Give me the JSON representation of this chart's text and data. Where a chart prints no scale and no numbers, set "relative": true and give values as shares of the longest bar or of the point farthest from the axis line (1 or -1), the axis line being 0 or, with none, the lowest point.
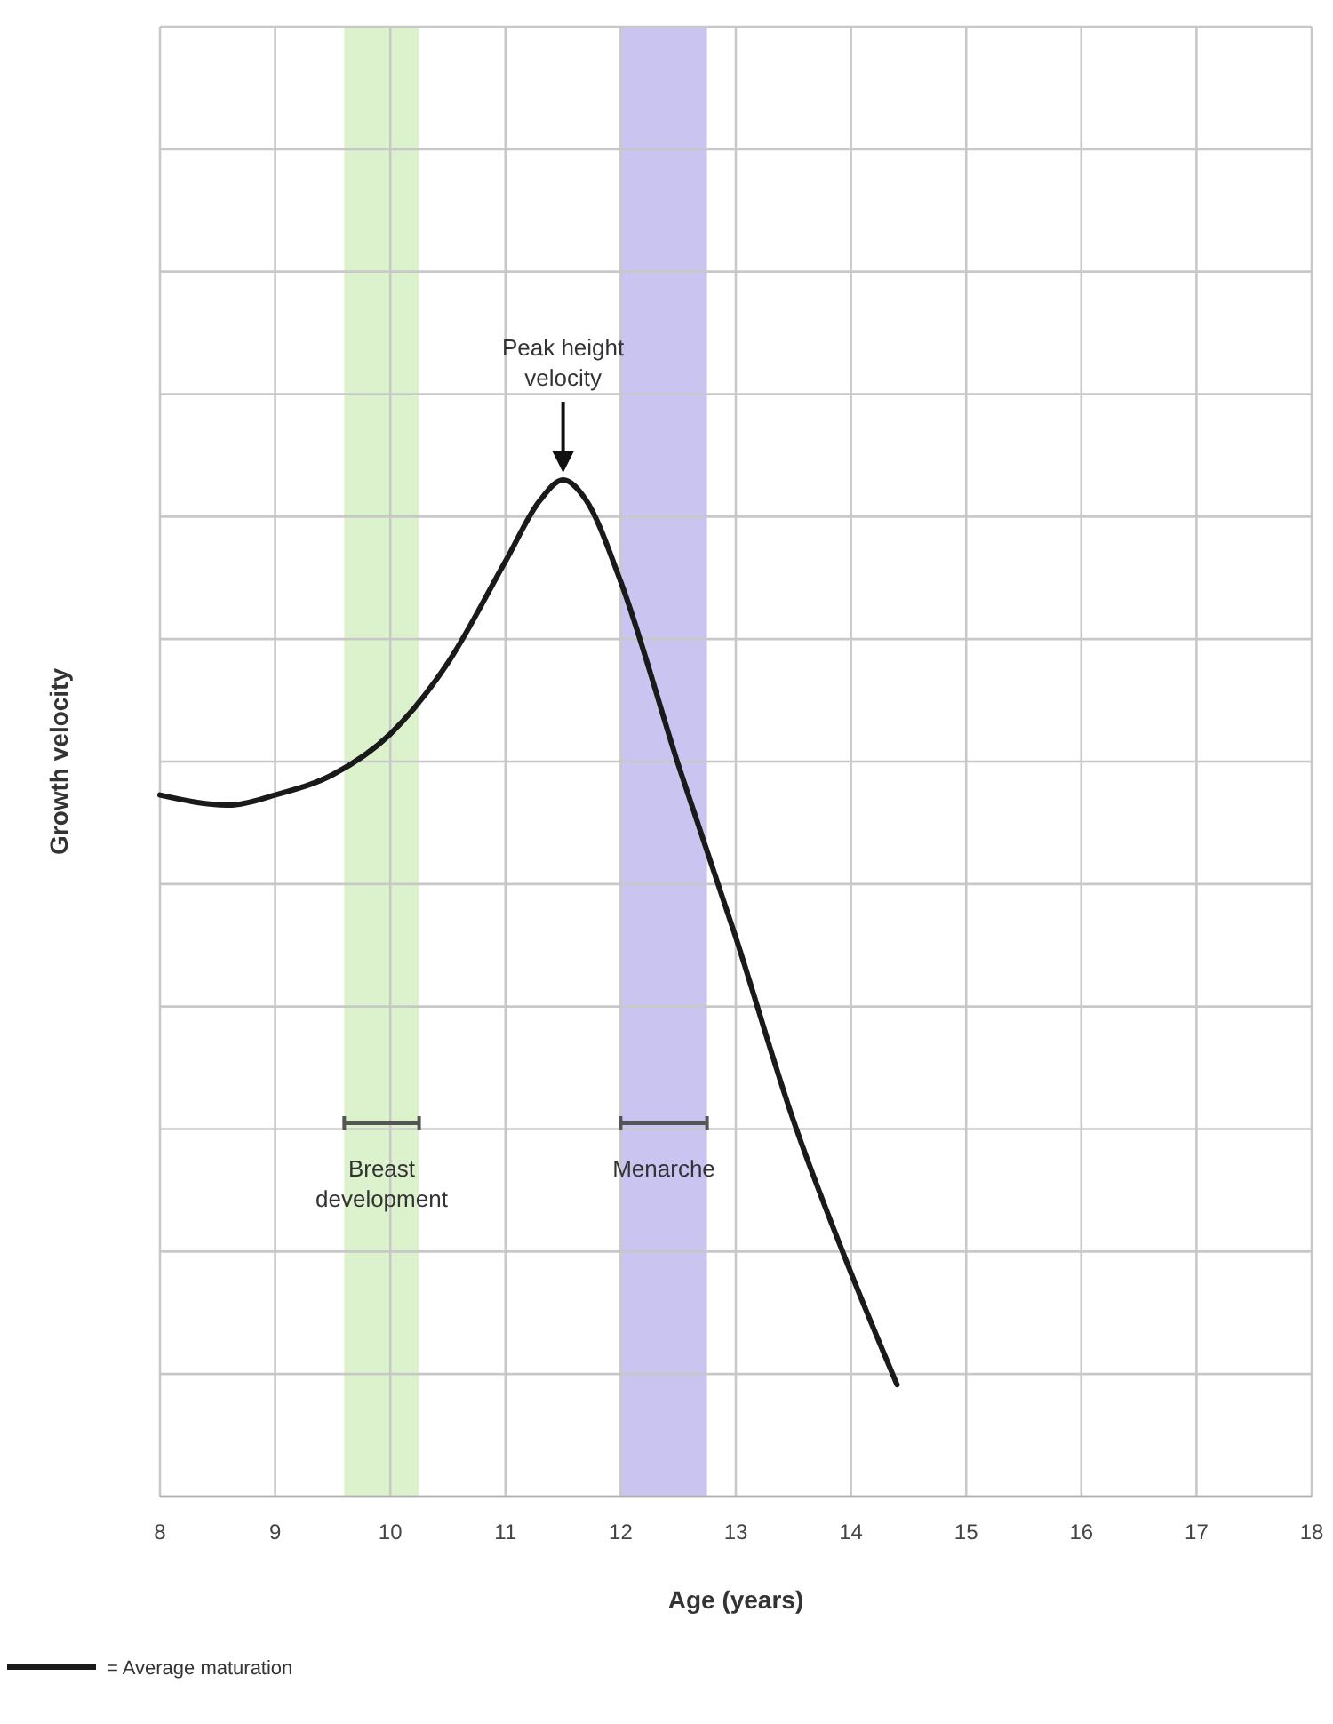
{
  "chart_data": {
    "type": "line",
    "xlabel": "Age (years)",
    "ylabel": "Growth velocity",
    "relative": true,
    "x": [
      8.0,
      8.6,
      9.0,
      9.5,
      10.0,
      10.5,
      11.0,
      11.3,
      11.5,
      11.7,
      12.0,
      12.5,
      13.0,
      13.5,
      14.0,
      14.4
    ],
    "series": [
      {
        "name": "= Average maturation",
        "color": "#1a1a1a",
        "values": [
          0.69,
          0.68,
          0.69,
          0.71,
          0.75,
          0.82,
          0.92,
          0.98,
          1,
          0.98,
          0.9,
          0.72,
          0.55,
          0.37,
          0.22,
          0.11
        ]
      }
    ],
    "xlim": [
      8,
      18
    ],
    "xticks": [
      8,
      9,
      10,
      11,
      12,
      13,
      14,
      15,
      16,
      17,
      18
    ],
    "bands": [
      {
        "axis": "x",
        "from": 9.6,
        "to": 10.25,
        "label": "Breast development",
        "color": "#dcf2cc"
      },
      {
        "axis": "x",
        "from": 12,
        "to": 12.75,
        "label": "Menarche",
        "color": "#c9c5f0"
      }
    ],
    "annotations": [
      "Peak height velocity"
    ],
    "grid": true,
    "legend": "bottom left",
    "marker": "none",
    "line_style": "solid"
  }
}
